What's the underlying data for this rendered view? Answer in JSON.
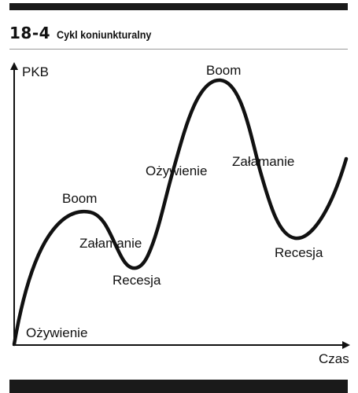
{
  "figure": {
    "number": "18-4",
    "title": "Cykl koniunkturalny"
  },
  "axes": {
    "y_label": "PKB",
    "x_label": "Czas"
  },
  "labels": {
    "ozywienie_1": "Ożywienie",
    "boom_1": "Boom",
    "zalamanie_1": "Załamanie",
    "recesja_1": "Recesja",
    "ozywienie_2": "Ożywienie",
    "boom_2": "Boom",
    "zalamanie_2": "Załamanie",
    "recesja_2": "Recesja"
  }
}
